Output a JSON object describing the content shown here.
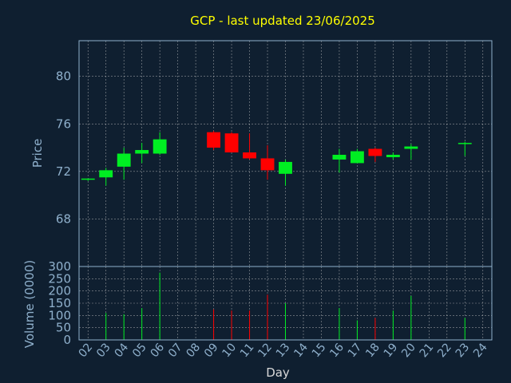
{
  "chart_data": {
    "type": "candlestick",
    "title": "GCP - last updated 23/06/2025",
    "xlabel": "Day",
    "price_ylabel": "Price",
    "volume_ylabel": "Volume (0000)",
    "x_ticks": [
      "02",
      "03",
      "04",
      "05",
      "06",
      "07",
      "08",
      "09",
      "10",
      "11",
      "12",
      "13",
      "14",
      "15",
      "16",
      "17",
      "18",
      "19",
      "20",
      "21",
      "22",
      "23",
      "24"
    ],
    "price_ticks": [
      68,
      72,
      76,
      80
    ],
    "price_ylim": [
      64,
      83
    ],
    "volume_ticks": [
      0,
      50,
      100,
      150,
      200,
      250,
      300
    ],
    "volume_ylim": [
      0,
      300
    ],
    "grid": true,
    "colors": {
      "background": "#0f1f30",
      "title": "#ffff00",
      "axis_text": "#8fb0cc",
      "up": "#00ee22",
      "down": "#ff0000",
      "grid": "#c8c8c8"
    },
    "candles": [
      {
        "day": "02",
        "open": 71.3,
        "high": 71.4,
        "low": 71.2,
        "close": 71.4,
        "volume": 0
      },
      {
        "day": "03",
        "open": 71.5,
        "high": 72.3,
        "low": 70.8,
        "close": 72.1,
        "volume": 110
      },
      {
        "day": "04",
        "open": 72.4,
        "high": 74.0,
        "low": 71.3,
        "close": 73.5,
        "volume": 105
      },
      {
        "day": "05",
        "open": 73.5,
        "high": 74.4,
        "low": 72.7,
        "close": 73.8,
        "volume": 130
      },
      {
        "day": "06",
        "open": 73.5,
        "high": 75.3,
        "low": 73.4,
        "close": 74.7,
        "volume": 275
      },
      {
        "day": "09",
        "open": 75.3,
        "high": 75.4,
        "low": 73.8,
        "close": 74.0,
        "volume": 125
      },
      {
        "day": "10",
        "open": 75.2,
        "high": 75.3,
        "low": 73.6,
        "close": 73.6,
        "volume": 120
      },
      {
        "day": "11",
        "open": 73.6,
        "high": 75.2,
        "low": 73.0,
        "close": 73.1,
        "volume": 120
      },
      {
        "day": "12",
        "open": 73.1,
        "high": 74.2,
        "low": 71.3,
        "close": 72.1,
        "volume": 185
      },
      {
        "day": "13",
        "open": 71.8,
        "high": 73.0,
        "low": 70.8,
        "close": 72.8,
        "volume": 150
      },
      {
        "day": "16",
        "open": 73.0,
        "high": 73.9,
        "low": 71.9,
        "close": 73.4,
        "volume": 130
      },
      {
        "day": "17",
        "open": 72.7,
        "high": 73.9,
        "low": 72.7,
        "close": 73.7,
        "volume": 80
      },
      {
        "day": "18",
        "open": 73.9,
        "high": 74.0,
        "low": 72.8,
        "close": 73.3,
        "volume": 90
      },
      {
        "day": "19",
        "open": 73.2,
        "high": 73.6,
        "low": 73.0,
        "close": 73.4,
        "volume": 120
      },
      {
        "day": "20",
        "open": 73.9,
        "high": 74.3,
        "low": 73.0,
        "close": 74.1,
        "volume": 180
      },
      {
        "day": "23",
        "open": 74.4,
        "high": 74.5,
        "low": 73.3,
        "close": 74.4,
        "volume": 90
      }
    ]
  }
}
